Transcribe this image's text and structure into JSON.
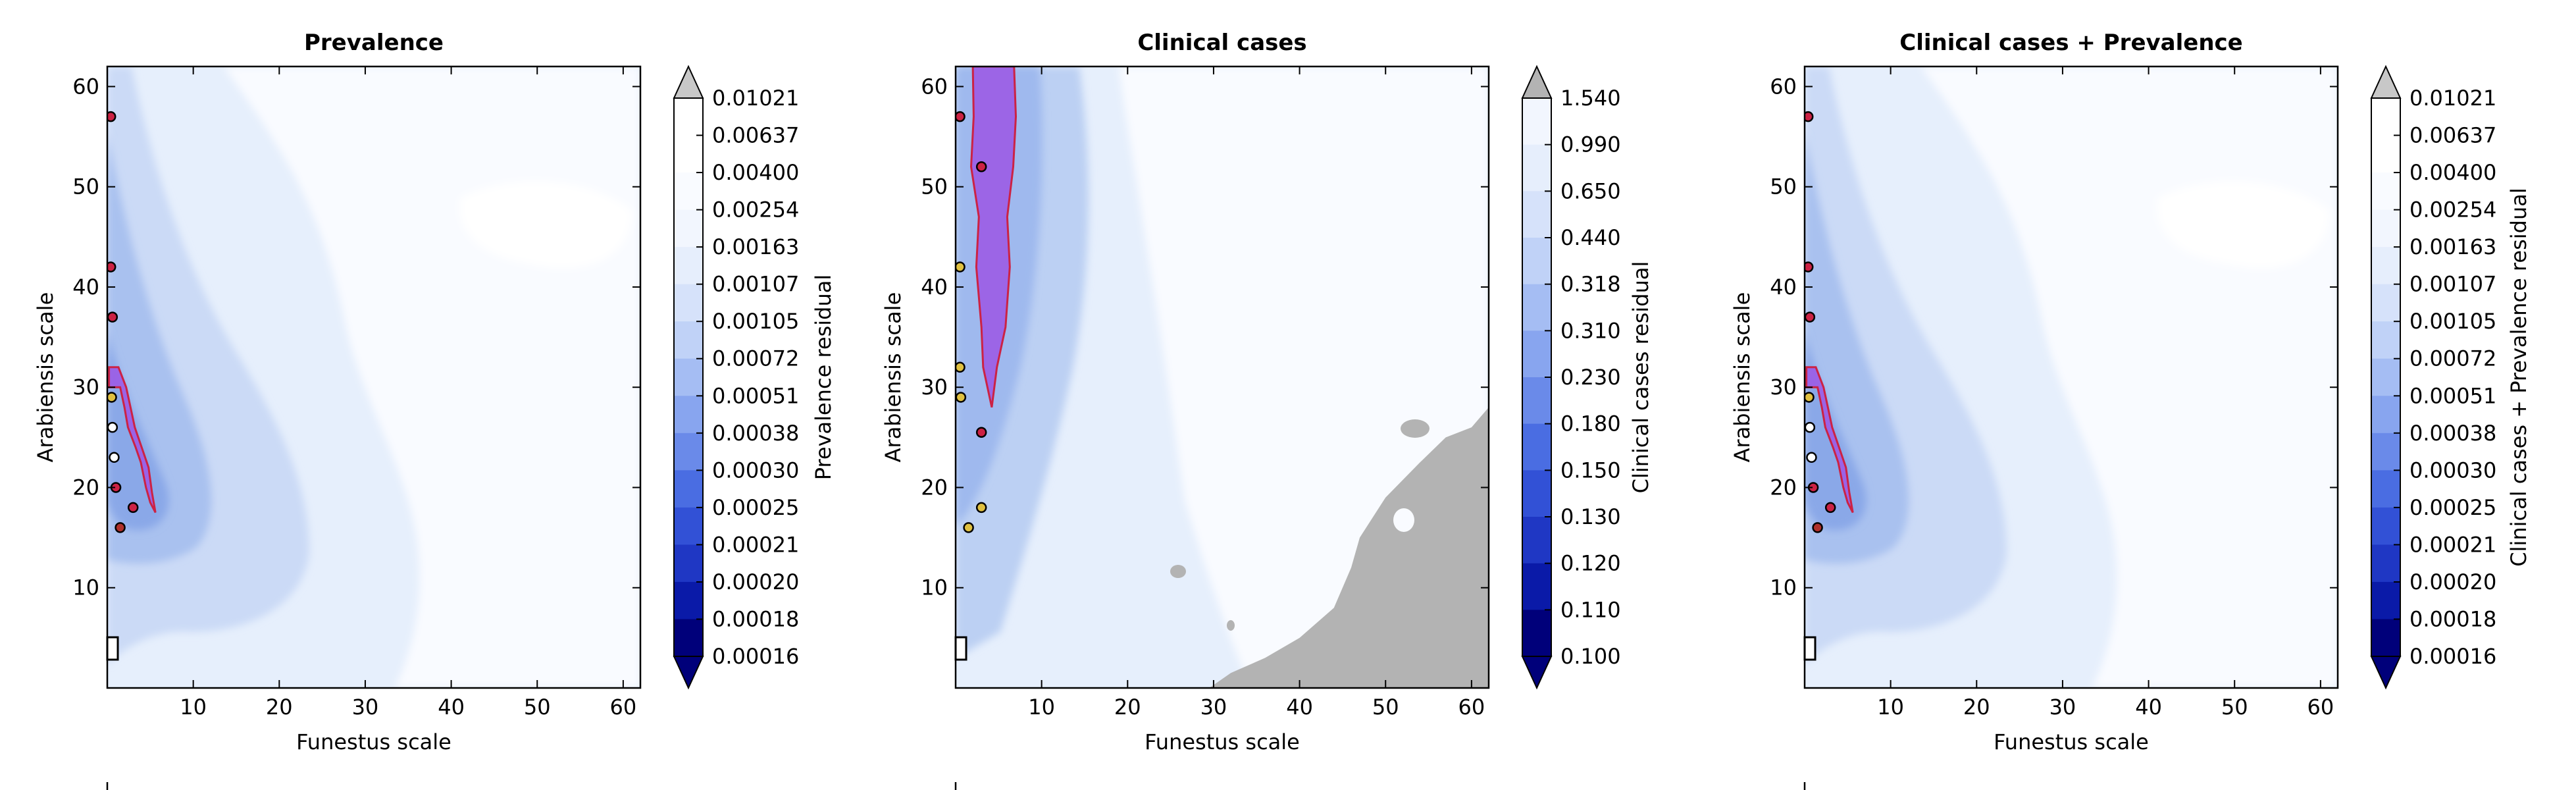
{
  "figure": {
    "panels": [
      {
        "id": "prevalence",
        "title": "Prevalence",
        "xlabel": "Funestus scale",
        "ylabel": "Arabiensis scale",
        "xticks": [
          "10",
          "20",
          "30",
          "40",
          "50",
          "60"
        ],
        "yticks": [
          "10",
          "20",
          "30",
          "40",
          "50",
          "60"
        ],
        "colorbar_label": "Prevalence residual",
        "colorbar_ticks": [
          "0.01021",
          "0.00637",
          "0.00400",
          "0.00254",
          "0.00163",
          "0.00107",
          "0.00105",
          "0.00072",
          "0.00051",
          "0.00038",
          "0.00030",
          "0.00025",
          "0.00021",
          "0.00020",
          "0.00018",
          "0.00016"
        ],
        "legend_text": "…"
      },
      {
        "id": "clinical",
        "title": "Clinical cases",
        "xlabel": "Funestus scale",
        "ylabel": "Arabiensis scale",
        "xticks": [
          "10",
          "20",
          "30",
          "40",
          "50",
          "60"
        ],
        "yticks": [
          "10",
          "20",
          "30",
          "40",
          "50",
          "60"
        ],
        "colorbar_label": "Clinical cases residual",
        "colorbar_ticks": [
          "1.540",
          "0.990",
          "0.650",
          "0.440",
          "0.318",
          "0.310",
          "0.230",
          "0.180",
          "0.150",
          "0.130",
          "0.120",
          "0.110",
          "0.100"
        ],
        "legend_text": "…"
      },
      {
        "id": "combined",
        "title": "Clinical cases + Prevalence",
        "xlabel": "Funestus scale",
        "ylabel": "Arabiensis scale",
        "xticks": [
          "10",
          "20",
          "30",
          "40",
          "50",
          "60"
        ],
        "yticks": [
          "10",
          "20",
          "30",
          "40",
          "50",
          "60"
        ],
        "colorbar_label": "Clinical cases + Prevalence residual",
        "colorbar_ticks": [
          "0.01021",
          "0.00637",
          "0.00400",
          "0.00254",
          "0.00163",
          "0.00107",
          "0.00105",
          "0.00072",
          "0.00051",
          "0.00038",
          "0.00030",
          "0.00025",
          "0.00021",
          "0.00020",
          "0.00018",
          "0.00016"
        ],
        "legend_text": "…"
      }
    ]
  },
  "chart_data": [
    {
      "type": "heatmap",
      "title": "Prevalence",
      "xlabel": "Funestus scale",
      "ylabel": "Arabiensis scale",
      "xlim": [
        0,
        62
      ],
      "ylim": [
        0,
        62
      ],
      "colorbar_label": "Prevalence residual",
      "colorbar_levels": [
        0.01021,
        0.00637,
        0.004,
        0.00254,
        0.00163,
        0.00107,
        0.00105,
        0.00072,
        0.00051,
        0.00038,
        0.0003,
        0.00025,
        0.00021,
        0.0002,
        0.00018,
        0.00016
      ],
      "colorbar_extend": "both",
      "colors": {
        "extend_max": "#c8c8c8",
        "extend_min": "#00007a",
        "highlight_region": "#9b5de5",
        "highlight_outline": "#cc2244"
      },
      "highlight_region_outline": [
        [
          0.2,
          30
        ],
        [
          1.5,
          30
        ],
        [
          2,
          28
        ],
        [
          2.4,
          26
        ],
        [
          3.3,
          24
        ],
        [
          3.9,
          22.5
        ],
        [
          4.5,
          20
        ],
        [
          5,
          18.5
        ],
        [
          5.6,
          17.5
        ],
        [
          5.2,
          19.5
        ],
        [
          4.8,
          22
        ],
        [
          4,
          24
        ],
        [
          3.2,
          26
        ],
        [
          2.7,
          28
        ],
        [
          2.2,
          30
        ],
        [
          1.3,
          32
        ],
        [
          0.2,
          32
        ]
      ],
      "marked_points": [
        {
          "x": 0.6,
          "y": 26,
          "color": "#ffffff"
        },
        {
          "x": 1.0,
          "y": 20,
          "color": "#cc2244"
        },
        {
          "x": 1.5,
          "y": 16,
          "color": "#b0302a"
        },
        {
          "x": 3.0,
          "y": 18,
          "color": "#cc2244"
        },
        {
          "x": 0.8,
          "y": 23,
          "color": "#ffffff"
        },
        {
          "x": 0.4,
          "y": 42,
          "color": "#cc2244"
        },
        {
          "x": 0.4,
          "y": 57,
          "color": "#cc2244"
        },
        {
          "x": 0.6,
          "y": 37,
          "color": "#cc2244"
        },
        {
          "x": 0.5,
          "y": 29,
          "color": "#e0c040"
        }
      ]
    },
    {
      "type": "heatmap",
      "title": "Clinical cases",
      "xlabel": "Funestus scale",
      "ylabel": "Arabiensis scale",
      "xlim": [
        0,
        62
      ],
      "ylim": [
        0,
        62
      ],
      "colorbar_label": "Clinical cases residual",
      "colorbar_levels": [
        1.54,
        0.99,
        0.65,
        0.44,
        0.318,
        0.31,
        0.23,
        0.18,
        0.15,
        0.13,
        0.12,
        0.11,
        0.1
      ],
      "colorbar_extend": "both",
      "colors": {
        "extend_max": "#b3b3b3",
        "extend_min": "#00007a",
        "highlight_region": "#9b5de5",
        "highlight_outline": "#cc2244"
      },
      "highlight_region_outline": [
        [
          2.2,
          62
        ],
        [
          6.8,
          62
        ],
        [
          7,
          57
        ],
        [
          6.7,
          52
        ],
        [
          6,
          47
        ],
        [
          6.3,
          42
        ],
        [
          5.8,
          36
        ],
        [
          4.8,
          32
        ],
        [
          4.2,
          28
        ],
        [
          3.2,
          32
        ],
        [
          3,
          36
        ],
        [
          2.4,
          42
        ],
        [
          2.7,
          47
        ],
        [
          1.8,
          52
        ],
        [
          2.1,
          57
        ],
        [
          2.0,
          62
        ]
      ],
      "grey_region_outline": [
        [
          29.5,
          0
        ],
        [
          32,
          1.5
        ],
        [
          36,
          3
        ],
        [
          40,
          5
        ],
        [
          44,
          8
        ],
        [
          46,
          12
        ],
        [
          47,
          15
        ],
        [
          50,
          19
        ],
        [
          54,
          22.5
        ],
        [
          57,
          25
        ],
        [
          60,
          26
        ],
        [
          62,
          28
        ],
        [
          62,
          0
        ]
      ],
      "marked_points": [
        {
          "x": 0.5,
          "y": 32,
          "color": "#e0c040"
        },
        {
          "x": 0.6,
          "y": 29,
          "color": "#e0c040"
        },
        {
          "x": 3.0,
          "y": 18,
          "color": "#e0c040"
        },
        {
          "x": 1.5,
          "y": 16,
          "color": "#e0c040"
        },
        {
          "x": 0.5,
          "y": 42,
          "color": "#e0c040"
        },
        {
          "x": 0.5,
          "y": 57,
          "color": "#cc2244"
        },
        {
          "x": 3.0,
          "y": 25.5,
          "color": "#cc2244"
        },
        {
          "x": 3.0,
          "y": 52,
          "color": "#cc2244"
        }
      ]
    },
    {
      "type": "heatmap",
      "title": "Clinical cases + Prevalence",
      "xlabel": "Funestus scale",
      "ylabel": "Arabiensis scale",
      "xlim": [
        0,
        62
      ],
      "ylim": [
        0,
        62
      ],
      "colorbar_label": "Clinical cases + Prevalence residual",
      "colorbar_levels": [
        0.01021,
        0.00637,
        0.004,
        0.00254,
        0.00163,
        0.00107,
        0.00105,
        0.00072,
        0.00051,
        0.00038,
        0.0003,
        0.00025,
        0.00021,
        0.0002,
        0.00018,
        0.00016
      ],
      "colorbar_extend": "both",
      "colors": {
        "extend_max": "#c8c8c8",
        "extend_min": "#00007a",
        "highlight_region": "#9b5de5",
        "highlight_outline": "#cc2244"
      },
      "highlight_region_outline": [
        [
          0.2,
          30
        ],
        [
          1.5,
          30
        ],
        [
          2,
          28
        ],
        [
          2.4,
          26
        ],
        [
          3.3,
          24
        ],
        [
          3.9,
          22.5
        ],
        [
          4.5,
          20
        ],
        [
          5,
          18.5
        ],
        [
          5.6,
          17.5
        ],
        [
          5.2,
          19.5
        ],
        [
          4.8,
          22
        ],
        [
          4,
          24
        ],
        [
          3.2,
          26
        ],
        [
          2.7,
          28
        ],
        [
          2.2,
          30
        ],
        [
          1.3,
          32
        ],
        [
          0.2,
          32
        ]
      ],
      "marked_points": [
        {
          "x": 0.6,
          "y": 26,
          "color": "#ffffff"
        },
        {
          "x": 1.0,
          "y": 20,
          "color": "#cc2244"
        },
        {
          "x": 1.5,
          "y": 16,
          "color": "#b0302a"
        },
        {
          "x": 3.0,
          "y": 18,
          "color": "#cc2244"
        },
        {
          "x": 0.8,
          "y": 23,
          "color": "#ffffff"
        },
        {
          "x": 0.4,
          "y": 42,
          "color": "#cc2244"
        },
        {
          "x": 0.4,
          "y": 57,
          "color": "#cc2244"
        },
        {
          "x": 0.6,
          "y": 37,
          "color": "#cc2244"
        },
        {
          "x": 0.5,
          "y": 29,
          "color": "#e0c040"
        }
      ]
    }
  ]
}
